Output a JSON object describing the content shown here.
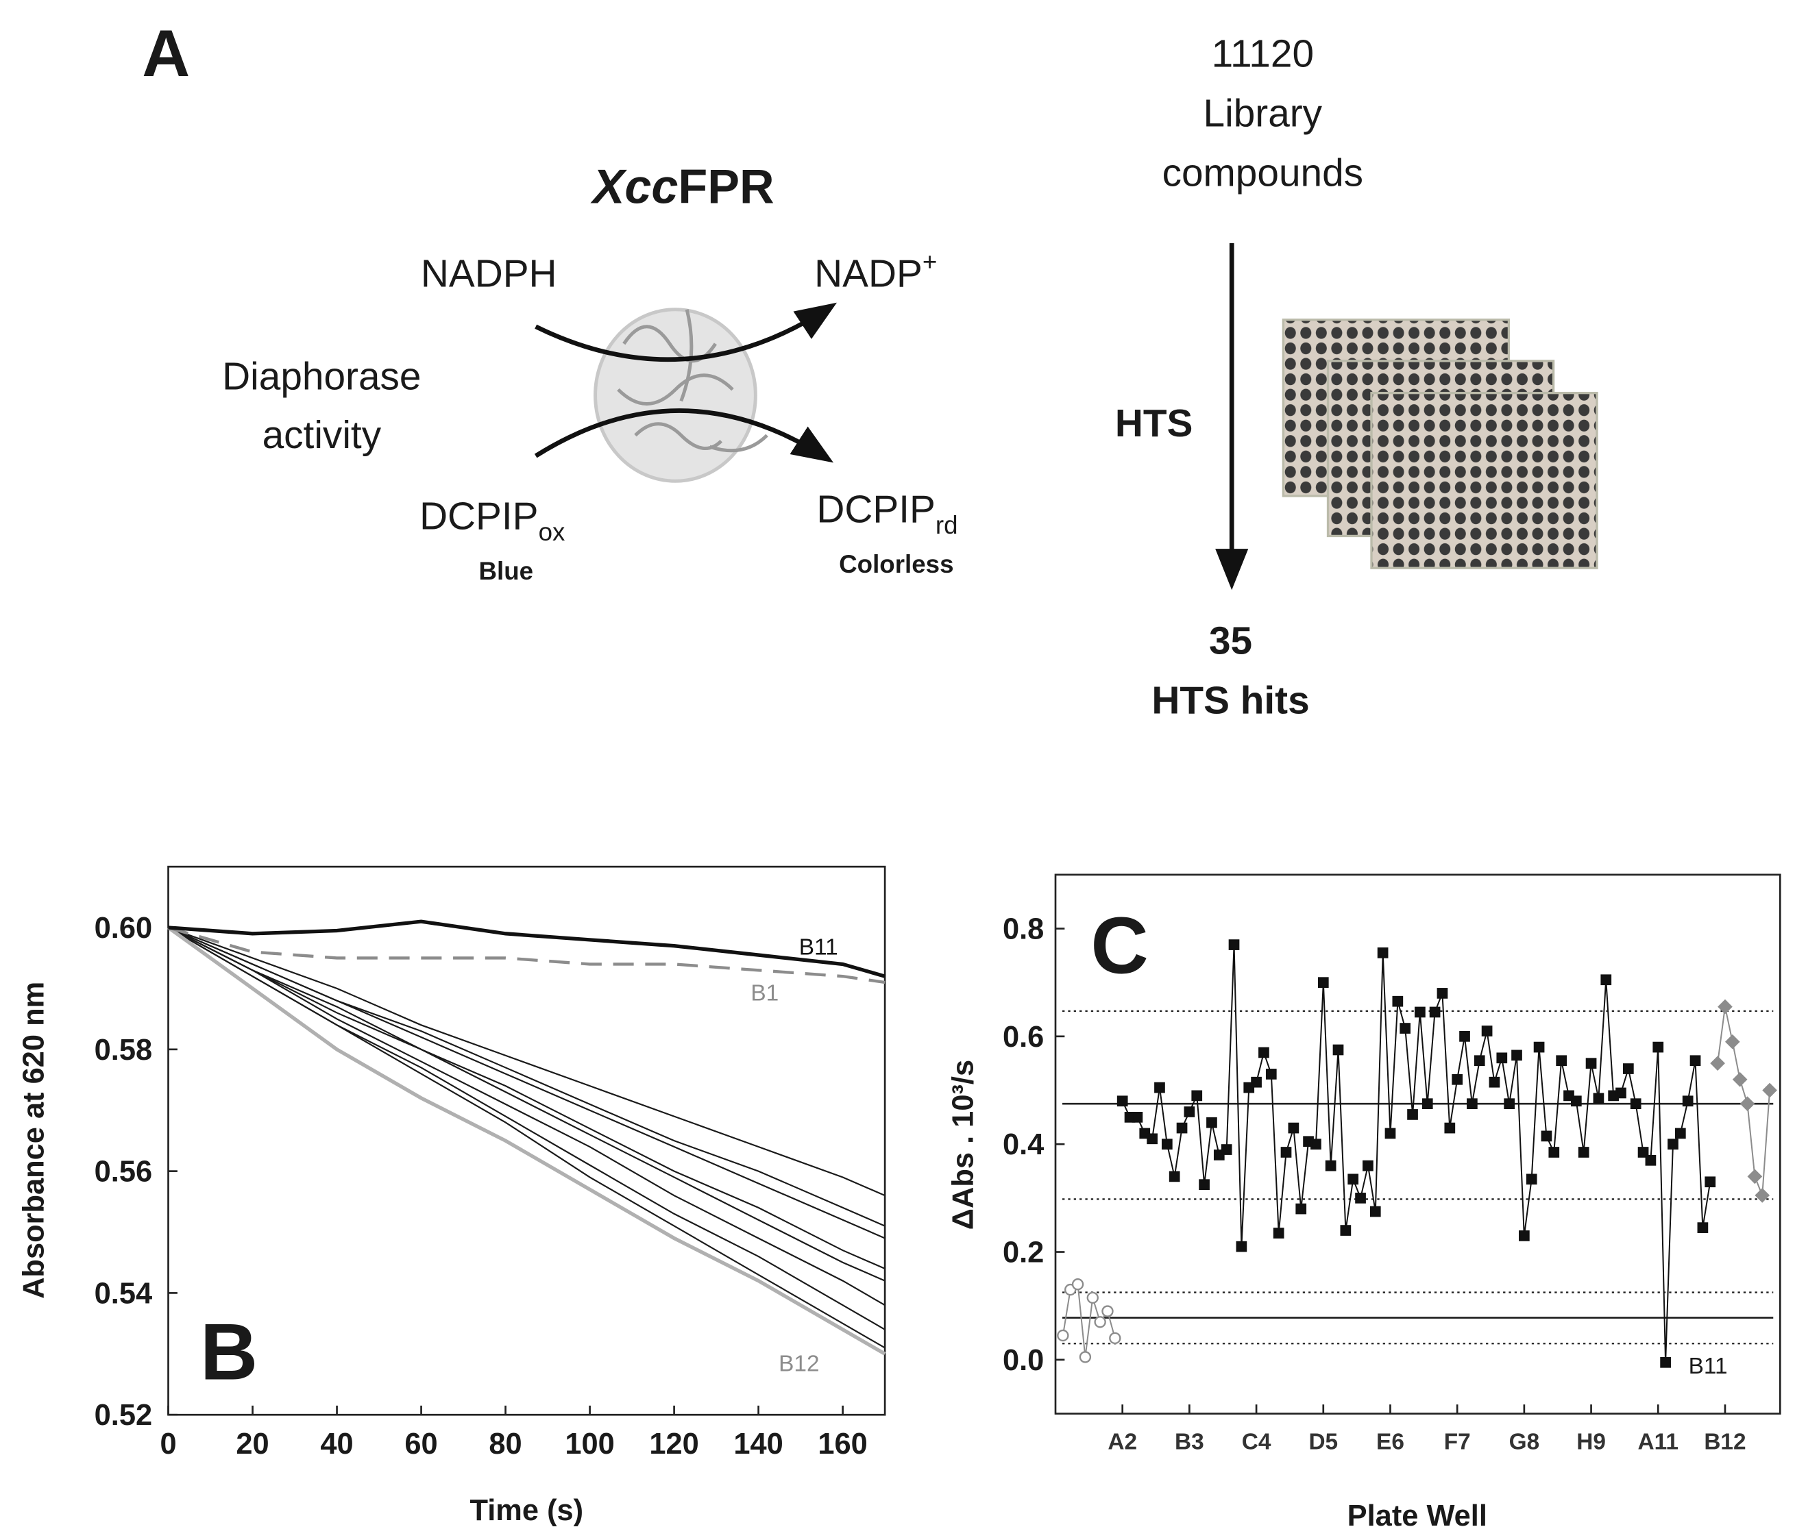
{
  "diagram": {
    "panel": "A",
    "enzyme": [
      "Xcc",
      "FPR"
    ],
    "substrate": "NADPH",
    "product": [
      "NADP",
      "+"
    ],
    "activity": [
      "Diaphorase",
      "activity"
    ],
    "dye_ox": [
      "DCPIP",
      "ox"
    ],
    "dye_ox_color": "Blue",
    "dye_rd": [
      "DCPIP",
      "rd"
    ],
    "dye_rd_color": "Colorless",
    "library": [
      "11120",
      "Library",
      "compounds"
    ],
    "screen": "HTS",
    "hits": [
      "35",
      "HTS hits"
    ]
  },
  "chart_data": [
    {
      "type": "line",
      "panel": "B",
      "x_label": "Time (s)",
      "y_label": "Absorbance at 620 nm",
      "x": [
        0,
        20,
        40,
        60,
        80,
        100,
        120,
        140,
        160,
        170
      ],
      "xlim": [
        0,
        170
      ],
      "ylim": [
        0.52,
        0.61
      ],
      "xticks": [
        0,
        20,
        40,
        60,
        80,
        100,
        120,
        140,
        160
      ],
      "yticks": [
        {
          "value": 0.6,
          "label": "0.60"
        },
        0.58,
        0.56,
        0.54,
        0.52
      ],
      "series": [
        {
          "color": "#1a1a1a",
          "line_style": "thin",
          "values": [
            0.6,
            0.595,
            0.59,
            0.584,
            0.579,
            0.574,
            0.569,
            0.564,
            0.559,
            0.556
          ]
        },
        {
          "color": "#1a1a1a",
          "line_style": "thin",
          "values": [
            0.6,
            0.594,
            0.588,
            0.583,
            0.577,
            0.571,
            0.565,
            0.56,
            0.554,
            0.551
          ]
        },
        {
          "color": "#1a1a1a",
          "line_style": "thin",
          "values": [
            0.6,
            0.594,
            0.588,
            0.582,
            0.576,
            0.57,
            0.564,
            0.558,
            0.552,
            0.549
          ]
        },
        {
          "color": "#1a1a1a",
          "line_style": "thin",
          "values": [
            0.6,
            0.593,
            0.587,
            0.58,
            0.574,
            0.567,
            0.56,
            0.554,
            0.547,
            0.544
          ]
        },
        {
          "color": "#1a1a1a",
          "line_style": "thin",
          "values": [
            0.6,
            0.593,
            0.586,
            0.58,
            0.573,
            0.566,
            0.559,
            0.552,
            0.545,
            0.542
          ]
        },
        {
          "color": "#1a1a1a",
          "line_style": "thin",
          "values": [
            0.6,
            0.593,
            0.585,
            0.578,
            0.571,
            0.564,
            0.556,
            0.549,
            0.542,
            0.538
          ]
        },
        {
          "color": "#1a1a1a",
          "line_style": "thin",
          "values": [
            0.6,
            0.592,
            0.584,
            0.577,
            0.569,
            0.561,
            0.553,
            0.546,
            0.538,
            0.534
          ]
        },
        {
          "color": "#1a1a1a",
          "line_style": "thin",
          "values": [
            0.6,
            0.592,
            0.584,
            0.576,
            0.568,
            0.559,
            0.551,
            0.543,
            0.535,
            0.531
          ]
        },
        {
          "name": "B12",
          "color": "#b0b0b0",
          "line_style": "thick",
          "values": [
            0.6,
            0.59,
            0.58,
            0.572,
            0.565,
            0.557,
            0.549,
            0.542,
            0.534,
            0.53
          ]
        },
        {
          "name": "B1",
          "color": "#8c8c8c",
          "line_style": "dashed",
          "values": [
            0.6,
            0.596,
            0.595,
            0.595,
            0.595,
            0.594,
            0.594,
            0.593,
            0.592,
            0.591
          ]
        },
        {
          "name": "B11",
          "color": "#111111",
          "line_style": "thick",
          "values": [
            0.6,
            0.599,
            0.5995,
            0.601,
            0.599,
            0.598,
            0.597,
            0.5955,
            0.594,
            0.592
          ]
        }
      ]
    },
    {
      "type": "scatter",
      "panel": "C",
      "x_label": "Plate Well",
      "y_label": "ΔAbs . 10³/s",
      "xlim": [
        0,
        97.4
      ],
      "ylim": [
        -0.1,
        0.9
      ],
      "xticks": [
        {
          "value": 9,
          "label": "A2"
        },
        {
          "value": 18,
          "label": "B3"
        },
        {
          "value": 27,
          "label": "C4"
        },
        {
          "value": 36,
          "label": "D5"
        },
        {
          "value": 45,
          "label": "E6"
        },
        {
          "value": 54,
          "label": "F7"
        },
        {
          "value": 63,
          "label": "G8"
        },
        {
          "value": 72,
          "label": "H9"
        },
        {
          "value": 81,
          "label": "A11"
        },
        {
          "value": 90,
          "label": "B12"
        }
      ],
      "yticks": [
        {
          "value": 0,
          "label": "0.0"
        },
        0.2,
        0.4,
        0.6,
        0.8
      ],
      "reference_lines": [
        {
          "value": 0.475,
          "line_style": "solid"
        },
        {
          "value": 0.647,
          "line_style": "dotted"
        },
        {
          "value": 0.298,
          "line_style": "dotted"
        },
        {
          "value": 0.078,
          "line_style": "solid"
        },
        {
          "value": 0.125,
          "line_style": "dotted"
        },
        {
          "value": 0.03,
          "line_style": "dotted"
        }
      ],
      "annotations": [
        "B11"
      ],
      "series": [
        {
          "color": "#8c8c8c",
          "marker": "circle",
          "filled": false,
          "x": [
            1,
            2,
            3,
            4,
            5,
            6,
            7,
            8
          ],
          "values": [
            0.045,
            0.13,
            0.14,
            0.005,
            0.115,
            0.07,
            0.09,
            0.04
          ]
        },
        {
          "color": "#111111",
          "marker": "square",
          "filled": true,
          "x": [
            9,
            10,
            11,
            12,
            13,
            14,
            15,
            16,
            17,
            18,
            19,
            20,
            21,
            22,
            23,
            24,
            25,
            26,
            27,
            28,
            29,
            30,
            31,
            32,
            33,
            34,
            35,
            36,
            37,
            38,
            39,
            40,
            41,
            42,
            43,
            44,
            45,
            46,
            47,
            48,
            49,
            50,
            51,
            52,
            53,
            54,
            55,
            56,
            57,
            58,
            59,
            60,
            61,
            62,
            63,
            64,
            65,
            66,
            67,
            68,
            69,
            70,
            71,
            72,
            73,
            74,
            75,
            76,
            77,
            78,
            79,
            80,
            81,
            82,
            83,
            84,
            85,
            86,
            87,
            88
          ],
          "values": [
            0.48,
            0.45,
            0.45,
            0.42,
            0.41,
            0.505,
            0.4,
            0.34,
            0.43,
            0.46,
            0.49,
            0.325,
            0.44,
            0.38,
            0.39,
            0.77,
            0.21,
            0.505,
            0.515,
            0.57,
            0.53,
            0.235,
            0.385,
            0.43,
            0.28,
            0.405,
            0.4,
            0.7,
            0.36,
            0.575,
            0.24,
            0.335,
            0.3,
            0.36,
            0.275,
            0.755,
            0.42,
            0.665,
            0.615,
            0.455,
            0.645,
            0.475,
            0.645,
            0.68,
            0.43,
            0.52,
            0.6,
            0.475,
            0.555,
            0.61,
            0.515,
            0.56,
            0.475,
            0.565,
            0.23,
            0.335,
            0.58,
            0.415,
            0.385,
            0.555,
            0.49,
            0.48,
            0.385,
            0.55,
            0.485,
            0.705,
            0.49,
            0.495,
            0.54,
            0.475,
            0.385,
            0.37,
            0.58,
            -0.005,
            0.4,
            0.42,
            0.48,
            0.555,
            0.245,
            0.33
          ]
        },
        {
          "color": "#8c8c8c",
          "marker": "diamond",
          "filled": true,
          "x": [
            89,
            90,
            91,
            92,
            93,
            94,
            95,
            96
          ],
          "values": [
            0.55,
            0.655,
            0.59,
            0.52,
            0.475,
            0.34,
            0.305,
            0.5
          ]
        }
      ]
    }
  ]
}
